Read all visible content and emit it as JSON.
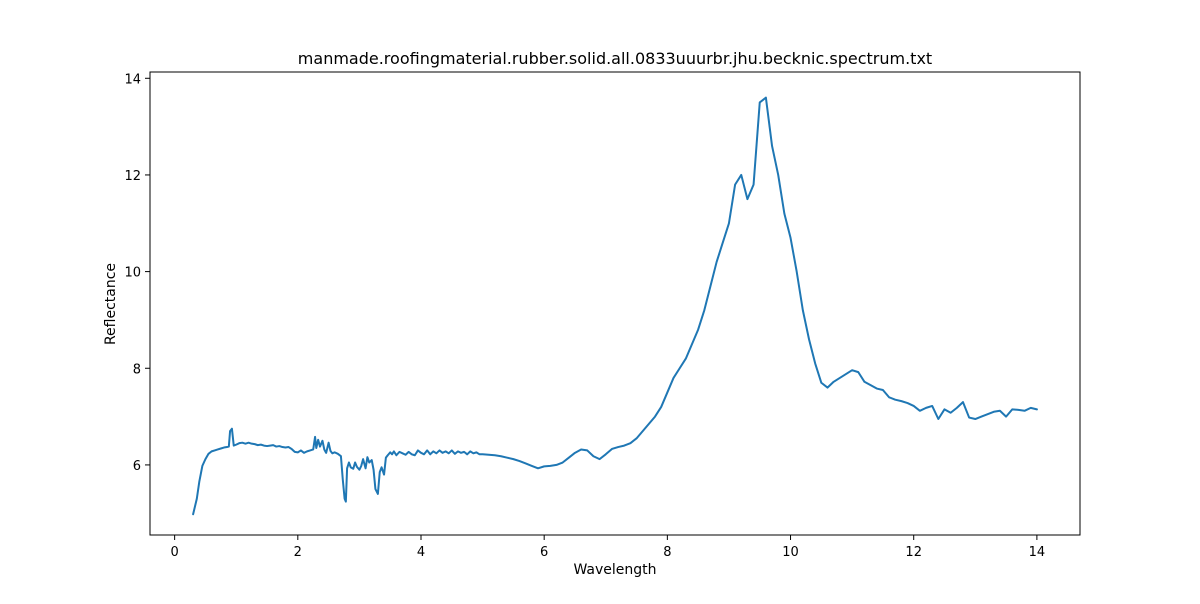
{
  "chart_data": {
    "type": "line",
    "title": "manmade.roofingmaterial.rubber.solid.all.0833uuurbr.jhu.becknic.spectrum.txt",
    "xlabel": "Wavelength",
    "ylabel": "Reflectance",
    "xlim": [
      -0.4,
      14.7
    ],
    "ylim": [
      4.55,
      14.13
    ],
    "xticks": [
      0,
      2,
      4,
      6,
      8,
      10,
      12,
      14
    ],
    "xtick_labels": [
      "0",
      "2",
      "4",
      "6",
      "8",
      "10",
      "12",
      "14"
    ],
    "yticks": [
      6,
      8,
      10,
      12,
      14
    ],
    "ytick_labels": [
      "6",
      "8",
      "10",
      "12",
      "14"
    ],
    "grid": false,
    "legend": "none",
    "series": [
      {
        "color": "#1f77b4",
        "x": [
          0.3,
          0.36,
          0.4,
          0.45,
          0.5,
          0.55,
          0.6,
          0.65,
          0.7,
          0.75,
          0.8,
          0.85,
          0.88,
          0.9,
          0.93,
          0.96,
          1.0,
          1.05,
          1.1,
          1.15,
          1.2,
          1.25,
          1.3,
          1.35,
          1.4,
          1.45,
          1.5,
          1.55,
          1.6,
          1.65,
          1.7,
          1.75,
          1.8,
          1.85,
          1.9,
          1.95,
          2.0,
          2.05,
          2.1,
          2.15,
          2.2,
          2.25,
          2.28,
          2.3,
          2.33,
          2.36,
          2.4,
          2.43,
          2.46,
          2.5,
          2.53,
          2.56,
          2.6,
          2.65,
          2.7,
          2.73,
          2.76,
          2.78,
          2.8,
          2.83,
          2.86,
          2.9,
          2.93,
          2.96,
          3.0,
          3.03,
          3.06,
          3.1,
          3.13,
          3.16,
          3.2,
          3.23,
          3.26,
          3.3,
          3.33,
          3.36,
          3.4,
          3.43,
          3.46,
          3.5,
          3.53,
          3.56,
          3.6,
          3.65,
          3.7,
          3.75,
          3.8,
          3.85,
          3.9,
          3.95,
          4.0,
          4.05,
          4.1,
          4.15,
          4.2,
          4.25,
          4.3,
          4.35,
          4.4,
          4.45,
          4.5,
          4.55,
          4.6,
          4.65,
          4.7,
          4.75,
          4.8,
          4.85,
          4.9,
          4.95,
          5.0,
          5.1,
          5.2,
          5.3,
          5.4,
          5.5,
          5.6,
          5.7,
          5.8,
          5.9,
          6.0,
          6.1,
          6.2,
          6.3,
          6.4,
          6.5,
          6.6,
          6.7,
          6.8,
          6.9,
          7.0,
          7.1,
          7.2,
          7.3,
          7.4,
          7.5,
          7.6,
          7.7,
          7.8,
          7.9,
          8.0,
          8.1,
          8.2,
          8.3,
          8.4,
          8.5,
          8.6,
          8.7,
          8.8,
          8.9,
          9.0,
          9.1,
          9.2,
          9.3,
          9.4,
          9.5,
          9.6,
          9.7,
          9.8,
          9.9,
          10.0,
          10.1,
          10.2,
          10.3,
          10.4,
          10.5,
          10.6,
          10.7,
          10.8,
          10.9,
          11.0,
          11.1,
          11.2,
          11.3,
          11.4,
          11.5,
          11.6,
          11.7,
          11.8,
          11.9,
          12.0,
          12.1,
          12.2,
          12.3,
          12.4,
          12.5,
          12.6,
          12.7,
          12.8,
          12.9,
          13.0,
          13.1,
          13.2,
          13.3,
          13.4,
          13.5,
          13.6,
          13.7,
          13.8,
          13.9,
          14.0
        ],
        "y": [
          4.98,
          5.3,
          5.65,
          5.98,
          6.12,
          6.23,
          6.28,
          6.3,
          6.32,
          6.34,
          6.36,
          6.37,
          6.38,
          6.7,
          6.75,
          6.4,
          6.42,
          6.45,
          6.46,
          6.44,
          6.46,
          6.44,
          6.43,
          6.41,
          6.42,
          6.4,
          6.39,
          6.4,
          6.41,
          6.38,
          6.39,
          6.37,
          6.36,
          6.37,
          6.33,
          6.27,
          6.26,
          6.3,
          6.25,
          6.28,
          6.3,
          6.32,
          6.58,
          6.35,
          6.52,
          6.38,
          6.5,
          6.32,
          6.25,
          6.46,
          6.29,
          6.24,
          6.26,
          6.23,
          6.18,
          5.7,
          5.3,
          5.24,
          5.93,
          6.05,
          5.95,
          5.92,
          6.05,
          5.96,
          5.9,
          5.98,
          6.12,
          5.93,
          6.16,
          6.05,
          6.1,
          5.9,
          5.5,
          5.4,
          5.85,
          5.95,
          5.8,
          6.15,
          6.2,
          6.26,
          6.22,
          6.28,
          6.2,
          6.27,
          6.24,
          6.21,
          6.27,
          6.22,
          6.2,
          6.3,
          6.25,
          6.22,
          6.3,
          6.22,
          6.28,
          6.24,
          6.3,
          6.25,
          6.28,
          6.24,
          6.3,
          6.23,
          6.28,
          6.25,
          6.27,
          6.22,
          6.28,
          6.24,
          6.26,
          6.22,
          6.22,
          6.21,
          6.2,
          6.18,
          6.15,
          6.12,
          6.08,
          6.03,
          5.98,
          5.93,
          5.97,
          5.98,
          6.0,
          6.05,
          6.15,
          6.25,
          6.32,
          6.3,
          6.18,
          6.12,
          6.22,
          6.33,
          6.37,
          6.4,
          6.45,
          6.55,
          6.7,
          6.85,
          7.0,
          7.2,
          7.5,
          7.8,
          8.0,
          8.2,
          8.5,
          8.8,
          9.2,
          9.7,
          10.2,
          10.6,
          11.0,
          11.8,
          12.0,
          11.5,
          11.8,
          13.5,
          13.6,
          12.6,
          12.0,
          11.2,
          10.7,
          10.0,
          9.2,
          8.6,
          8.1,
          7.7,
          7.6,
          7.72,
          7.8,
          7.88,
          7.96,
          7.92,
          7.72,
          7.65,
          7.58,
          7.55,
          7.4,
          7.35,
          7.32,
          7.28,
          7.22,
          7.12,
          7.18,
          7.22,
          6.95,
          7.15,
          7.08,
          7.18,
          7.3,
          6.98,
          6.95,
          7.0,
          7.05,
          7.1,
          7.12,
          7.0,
          7.15,
          7.14,
          7.12,
          7.18,
          7.15
        ]
      }
    ]
  }
}
